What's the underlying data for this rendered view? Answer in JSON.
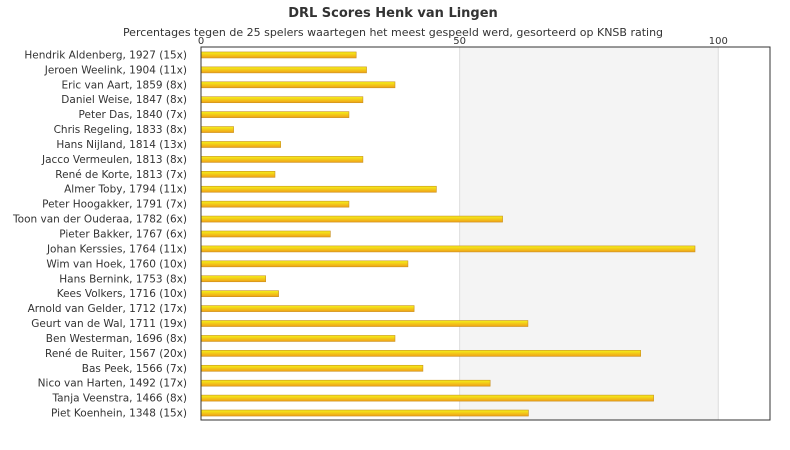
{
  "chart_data": {
    "type": "bar",
    "orientation": "horizontal",
    "title": "DRL Scores Henk van Lingen",
    "subtitle": "Percentages tegen de 25 spelers waartegen het meest gespeeld werd, gesorteerd op KNSB rating",
    "xlim": [
      0,
      110
    ],
    "x_ticks": [
      0,
      50,
      100
    ],
    "grid": true,
    "legend": "none",
    "categories": [
      "Hendrik Aldenberg, 1927 (15x)",
      "Jeroen Weelink, 1904 (11x)",
      "Eric van Aart, 1859 (8x)",
      "Daniel Weise, 1847 (8x)",
      "Peter Das, 1840 (7x)",
      "Chris Regeling, 1833 (8x)",
      "Hans Nijland, 1814 (13x)",
      "Jacco Vermeulen, 1813 (8x)",
      "René de Korte, 1813 (7x)",
      "Almer Toby, 1794 (11x)",
      "Peter Hoogakker, 1791 (7x)",
      "Toon van der Ouderaa, 1782 (6x)",
      "Pieter Bakker, 1767 (6x)",
      "Johan Kerssies, 1764 (11x)",
      "Wim van Hoek, 1760 (10x)",
      "Hans Bernink, 1753 (8x)",
      "Kees Volkers, 1716 (10x)",
      "Arnold van Gelder, 1712 (17x)",
      "Geurt van de Wal, 1711 (19x)",
      "Ben Westerman, 1696 (8x)",
      "René de Ruiter, 1567 (20x)",
      "Bas Peek, 1566 (7x)",
      "Nico van Harten, 1492 (17x)",
      "Tanja Veenstra, 1466 (8x)",
      "Piet Koenhein, 1348 (15x)"
    ],
    "values": [
      30,
      32,
      37.5,
      31.3,
      28.6,
      6.3,
      15.4,
      31.3,
      14.3,
      45.5,
      28.6,
      58.3,
      25,
      95.5,
      40,
      12.5,
      15,
      41.2,
      63.2,
      37.5,
      85,
      42.9,
      55.9,
      87.5,
      63.3
    ]
  },
  "colors": {
    "bar_top": "#f5f21a",
    "bar_bottom": "#f0a018",
    "bar_stroke": "#c89020",
    "plot_band_light": "#ffffff",
    "plot_band_dark": "#f4f4f4",
    "grid": "#dddddd",
    "frame": "#333333",
    "text": "#333333"
  }
}
